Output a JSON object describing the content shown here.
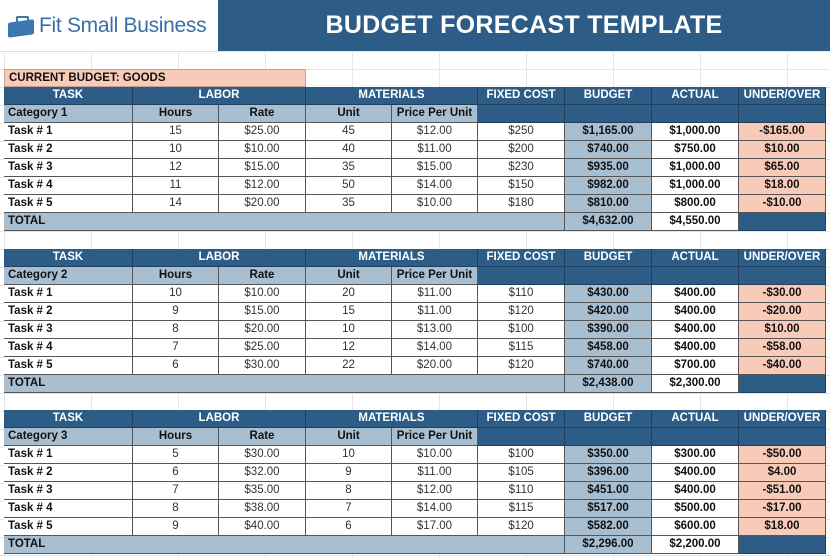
{
  "header": {
    "logo_text": "Fit Small Business",
    "title": "BUDGET FORECAST TEMPLATE"
  },
  "current_budget_label": "CURRENT BUDGET: GOODS",
  "columns": {
    "task": "TASK",
    "labor": "LABOR",
    "materials": "MATERIALS",
    "fixed_cost": "FIXED COST",
    "budget": "BUDGET",
    "actual": "ACTUAL",
    "under_over": "UNDER/OVER",
    "hours": "Hours",
    "rate": "Rate",
    "unit": "Unit",
    "price_per_unit": "Price Per Unit",
    "total": "TOTAL"
  },
  "colors": {
    "header_blue": "#2d5d87",
    "subheader_gray_blue": "#a8bfd1",
    "salmon": "#f8cbb8"
  },
  "blocks": [
    {
      "category": "Category 1",
      "rows": [
        {
          "task": "Task # 1",
          "hours": "15",
          "rate": "$25.00",
          "unit": "45",
          "price": "$12.00",
          "fixed": "$250",
          "budget": "$1,165.00",
          "actual": "$1,000.00",
          "under_over": "-$165.00"
        },
        {
          "task": "Task # 2",
          "hours": "10",
          "rate": "$10.00",
          "unit": "40",
          "price": "$11.00",
          "fixed": "$200",
          "budget": "$740.00",
          "actual": "$750.00",
          "under_over": "$10.00"
        },
        {
          "task": "Task # 3",
          "hours": "12",
          "rate": "$15.00",
          "unit": "35",
          "price": "$15.00",
          "fixed": "$230",
          "budget": "$935.00",
          "actual": "$1,000.00",
          "under_over": "$65.00"
        },
        {
          "task": "Task # 4",
          "hours": "11",
          "rate": "$12.00",
          "unit": "50",
          "price": "$14.00",
          "fixed": "$150",
          "budget": "$982.00",
          "actual": "$1,000.00",
          "under_over": "$18.00"
        },
        {
          "task": "Task # 5",
          "hours": "14",
          "rate": "$20.00",
          "unit": "35",
          "price": "$10.00",
          "fixed": "$180",
          "budget": "$810.00",
          "actual": "$800.00",
          "under_over": "-$10.00"
        }
      ],
      "total_budget": "$4,632.00",
      "total_actual": "$4,550.00"
    },
    {
      "category": "Category 2",
      "rows": [
        {
          "task": "Task # 1",
          "hours": "10",
          "rate": "$10.00",
          "unit": "20",
          "price": "$11.00",
          "fixed": "$110",
          "budget": "$430.00",
          "actual": "$400.00",
          "under_over": "-$30.00"
        },
        {
          "task": "Task # 2",
          "hours": "9",
          "rate": "$15.00",
          "unit": "15",
          "price": "$11.00",
          "fixed": "$120",
          "budget": "$420.00",
          "actual": "$400.00",
          "under_over": "-$20.00"
        },
        {
          "task": "Task # 3",
          "hours": "8",
          "rate": "$20.00",
          "unit": "10",
          "price": "$13.00",
          "fixed": "$100",
          "budget": "$390.00",
          "actual": "$400.00",
          "under_over": "$10.00"
        },
        {
          "task": "Task # 4",
          "hours": "7",
          "rate": "$25.00",
          "unit": "12",
          "price": "$14.00",
          "fixed": "$115",
          "budget": "$458.00",
          "actual": "$400.00",
          "under_over": "-$58.00"
        },
        {
          "task": "Task # 5",
          "hours": "6",
          "rate": "$30.00",
          "unit": "22",
          "price": "$20.00",
          "fixed": "$120",
          "budget": "$740.00",
          "actual": "$700.00",
          "under_over": "-$40.00"
        }
      ],
      "total_budget": "$2,438.00",
      "total_actual": "$2,300.00"
    },
    {
      "category": "Category 3",
      "rows": [
        {
          "task": "Task # 1",
          "hours": "5",
          "rate": "$30.00",
          "unit": "10",
          "price": "$10.00",
          "fixed": "$100",
          "budget": "$350.00",
          "actual": "$300.00",
          "under_over": "-$50.00"
        },
        {
          "task": "Task # 2",
          "hours": "6",
          "rate": "$32.00",
          "unit": "9",
          "price": "$11.00",
          "fixed": "$105",
          "budget": "$396.00",
          "actual": "$400.00",
          "under_over": "$4.00"
        },
        {
          "task": "Task # 3",
          "hours": "7",
          "rate": "$35.00",
          "unit": "8",
          "price": "$12.00",
          "fixed": "$110",
          "budget": "$451.00",
          "actual": "$400.00",
          "under_over": "-$51.00"
        },
        {
          "task": "Task # 4",
          "hours": "8",
          "rate": "$38.00",
          "unit": "7",
          "price": "$14.00",
          "fixed": "$115",
          "budget": "$517.00",
          "actual": "$500.00",
          "under_over": "-$17.00"
        },
        {
          "task": "Task # 5",
          "hours": "9",
          "rate": "$40.00",
          "unit": "6",
          "price": "$17.00",
          "fixed": "$120",
          "budget": "$582.00",
          "actual": "$600.00",
          "under_over": "$18.00"
        }
      ],
      "total_budget": "$2,296.00",
      "total_actual": "$2,200.00"
    }
  ]
}
